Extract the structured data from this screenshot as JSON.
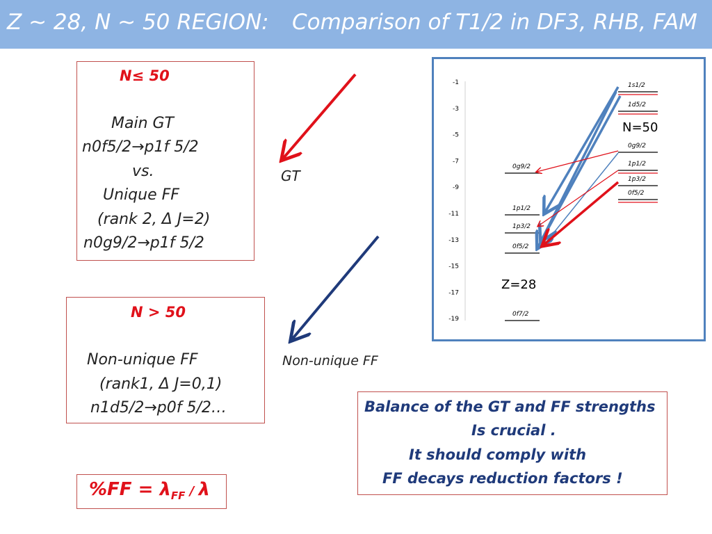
{
  "header": {
    "left": "Z ~ 28, N ~ 50  REGION:",
    "right": "Comparison of  T1/2 in DF3, RHB, FAM"
  },
  "box1": {
    "heading": "N≤ 50",
    "line1": "Main GT",
    "line2a": "n0f5/2",
    "line2b": "p1f 5/2",
    "line3": "vs.",
    "line4": "Unique  FF",
    "line5": "(rank 2,  Δ J=2)",
    "line6a": "n0g9/2",
    "line6b": "p1f 5/2"
  },
  "box2": {
    "heading": "N  > 50",
    "line1": "Non-unique  FF",
    "line2": "(rank1, Δ J=0,1)",
    "line3a": "n1d5/2",
    "line3b": "p0f 5/2…"
  },
  "labels": {
    "gt": "GT",
    "non_unique_ff": "Non-unique  FF"
  },
  "balance": {
    "line1": "Balance of the GT  and FF  strengths",
    "line2": "Is crucial .",
    "line3": "It  should comply with",
    "line4": "FF decays reduction factors !"
  },
  "ff_box": {
    "text": "%FF = λ",
    "sub": "FF",
    "slash": " / ",
    "lambda": "λ"
  },
  "arrow_glyph": "→",
  "level_diagram": {
    "y_axis_ticks": [
      "-1",
      "-3",
      "-5",
      "-7",
      "-9",
      "-11",
      "-13",
      "-15",
      "-17",
      "-19"
    ],
    "neutron_levels": [
      "1s1/2",
      "1d5/2",
      "0g9/2",
      "1p1/2",
      "1p3/2",
      "0f5/2"
    ],
    "proton_levels": [
      "0g9/2",
      "1p1/2",
      "1p3/2",
      "0f5/2",
      "0f7/2"
    ],
    "n_label": "N=50",
    "z_label": "Z=28",
    "colors": {
      "red": "#e0111a",
      "blue": "#4f81bd",
      "navy": "#1f3a7a",
      "level": "#000000"
    }
  }
}
